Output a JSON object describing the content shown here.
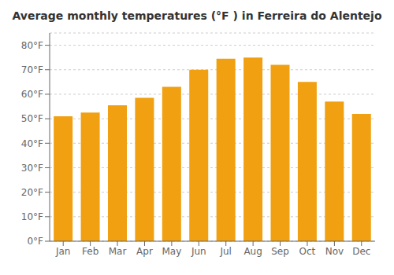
{
  "chart_data": {
    "type": "bar",
    "title": "Average monthly temperatures (°F ) in Ferreira do Alentejo",
    "categories": [
      "Jan",
      "Feb",
      "Mar",
      "Apr",
      "May",
      "Jun",
      "Jul",
      "Aug",
      "Sep",
      "Oct",
      "Nov",
      "Dec"
    ],
    "values": [
      51,
      52.5,
      55.5,
      58.5,
      63,
      70,
      74.5,
      75,
      72,
      65,
      57,
      52
    ],
    "color": "#F0A010",
    "ylim": [
      0,
      85
    ],
    "yticks": [
      {
        "value": 0,
        "label": "0°F"
      },
      {
        "value": 10,
        "label": "10°F"
      },
      {
        "value": 20,
        "label": "20°F"
      },
      {
        "value": 30,
        "label": "30°F"
      },
      {
        "value": 40,
        "label": "40°F"
      },
      {
        "value": 50,
        "label": "50°F"
      },
      {
        "value": 60,
        "label": "60°F"
      },
      {
        "value": 70,
        "label": "70°F"
      },
      {
        "value": 80,
        "label": "80°F"
      }
    ],
    "grid": true
  }
}
